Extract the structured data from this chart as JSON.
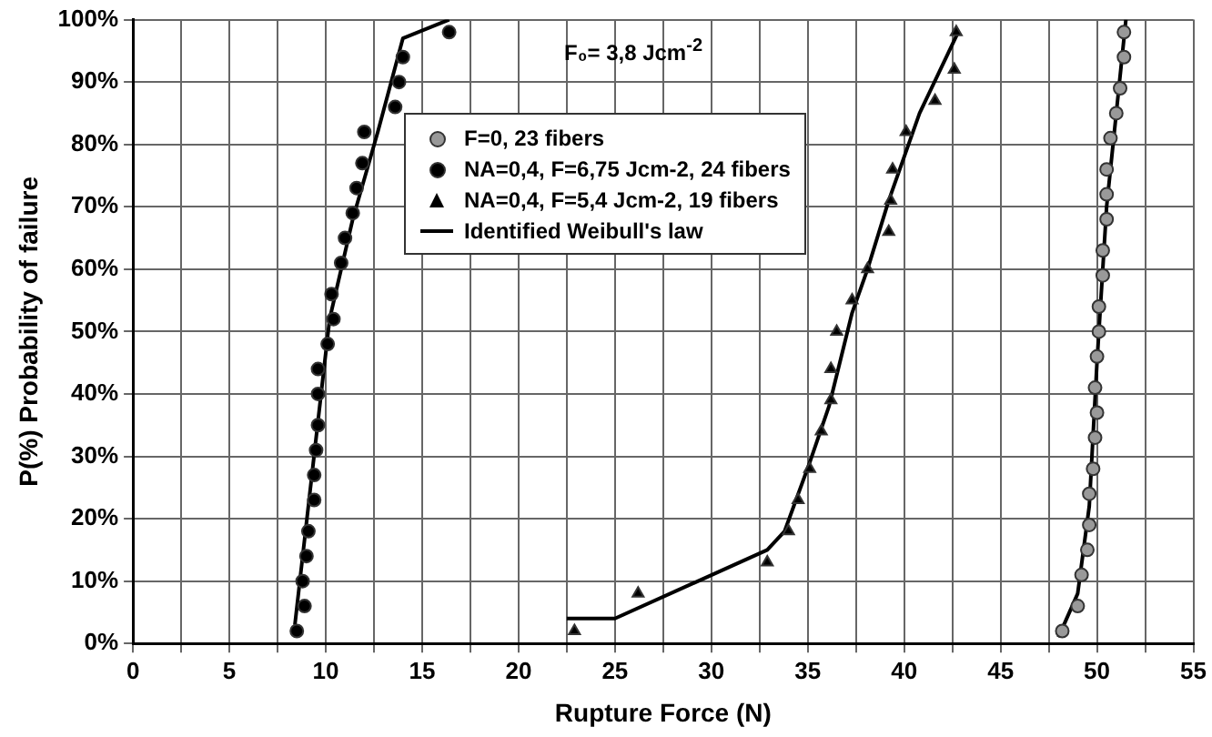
{
  "chart_data": {
    "type": "scatter",
    "xlabel": "Rupture Force (N)",
    "ylabel": "P(%) Probability of failure",
    "annotations": [
      "F₀= 3,8 Jcm$^{-2}$"
    ],
    "xlim": [
      0,
      55
    ],
    "ylim": [
      0,
      100
    ],
    "xticks": [
      0,
      {
        "value": 2.5,
        "label": null
      },
      5,
      {
        "value": 7.5,
        "label": null
      },
      10,
      {
        "value": 12.5,
        "label": null
      },
      15,
      {
        "value": 17.5,
        "label": null
      },
      20,
      {
        "value": 22.5,
        "label": null
      },
      25,
      {
        "value": 27.5,
        "label": null
      },
      30,
      {
        "value": 32.5,
        "label": null
      },
      35,
      {
        "value": 37.5,
        "label": null
      },
      40,
      {
        "value": 42.5,
        "label": null
      },
      45,
      {
        "value": 47.5,
        "label": null
      },
      50,
      {
        "value": 52.5,
        "label": null
      },
      55
    ],
    "yticks": [
      {
        "value": 0,
        "label": "0%"
      },
      {
        "value": 10,
        "label": "10%"
      },
      {
        "value": 20,
        "label": "20%"
      },
      {
        "value": 30,
        "label": "30%"
      },
      {
        "value": 40,
        "label": "40%"
      },
      {
        "value": 50,
        "label": "50%"
      },
      {
        "value": 60,
        "label": "60%"
      },
      {
        "value": 70,
        "label": "70%"
      },
      {
        "value": 80,
        "label": "80%"
      },
      {
        "value": 90,
        "label": "90%"
      },
      {
        "value": 100,
        "label": "100%"
      }
    ],
    "grid": true,
    "legend": "top",
    "series": [
      {
        "name": "F=0, 23 fibers",
        "type": "scatter",
        "marker": "circle",
        "color": "#999999",
        "x": [
          48.2,
          49.0,
          49.2,
          49.5,
          49.6,
          49.6,
          49.8,
          49.9,
          50.0,
          49.9,
          50.0,
          50.1,
          50.1,
          50.3,
          50.3,
          50.5,
          50.5,
          50.5,
          50.7,
          51.0,
          51.2,
          51.4,
          51.4
        ],
        "values": [
          2,
          6,
          11,
          15,
          19,
          24,
          28,
          33,
          37,
          41,
          46,
          50,
          54,
          59,
          63,
          68,
          72,
          76,
          81,
          85,
          89,
          94,
          98
        ]
      },
      {
        "name": "NA=0,4, F=6,75 Jcm-2, 24 fibers",
        "type": "scatter",
        "marker": "circle",
        "color": "#000000",
        "x": [
          8.5,
          8.9,
          8.8,
          9.0,
          9.1,
          9.4,
          9.4,
          9.5,
          9.6,
          9.6,
          9.6,
          10.1,
          10.4,
          10.3,
          10.8,
          11.0,
          11.4,
          11.6,
          11.9,
          12.0,
          13.6,
          13.8,
          14.0,
          16.4
        ],
        "values": [
          2,
          6,
          10,
          14,
          18,
          23,
          27,
          31,
          35,
          40,
          44,
          48,
          52,
          56,
          61,
          65,
          69,
          73,
          77,
          82,
          86,
          90,
          94,
          98
        ]
      },
      {
        "name": "NA=0,4, F=5,4 Jcm-2, 19 fibers",
        "type": "scatter",
        "marker": "triangle",
        "color": "#000000",
        "x": [
          22.9,
          26.2,
          32.9,
          34.0,
          34.5,
          35.1,
          35.7,
          36.2,
          36.2,
          36.5,
          37.3,
          38.1,
          39.2,
          39.3,
          39.4,
          40.1,
          41.6,
          42.6,
          42.7
        ],
        "values": [
          2,
          8,
          13,
          18,
          23,
          28,
          34,
          39,
          44,
          50,
          55,
          60,
          66,
          71,
          76,
          82,
          87,
          92,
          98
        ]
      },
      {
        "name": "Identified Weibull's law",
        "type": "line",
        "marker": "none",
        "line_style": "solid",
        "color": "#000000",
        "x": [
          8.4,
          10.2,
          11.4,
          12.7,
          14.0,
          16.4
        ],
        "values": [
          3,
          52,
          68,
          82,
          97,
          100
        ]
      },
      {
        "type": "line",
        "marker": "none",
        "line_style": "solid",
        "color": "#000000",
        "x": [
          22.5,
          25.0,
          32.9,
          33.8,
          35.1,
          36.1,
          37.3,
          38.1,
          39.2,
          40.8,
          42.8
        ],
        "values": [
          4,
          4,
          15,
          18,
          29,
          38,
          53,
          60,
          71,
          85,
          98
        ]
      },
      {
        "type": "line",
        "marker": "none",
        "line_style": "solid",
        "color": "#000000",
        "x": [
          48.0,
          49.0,
          49.6,
          50.0,
          50.5,
          51.0,
          51.5
        ],
        "values": [
          1,
          8,
          22,
          45,
          70,
          85,
          100
        ]
      }
    ]
  }
}
